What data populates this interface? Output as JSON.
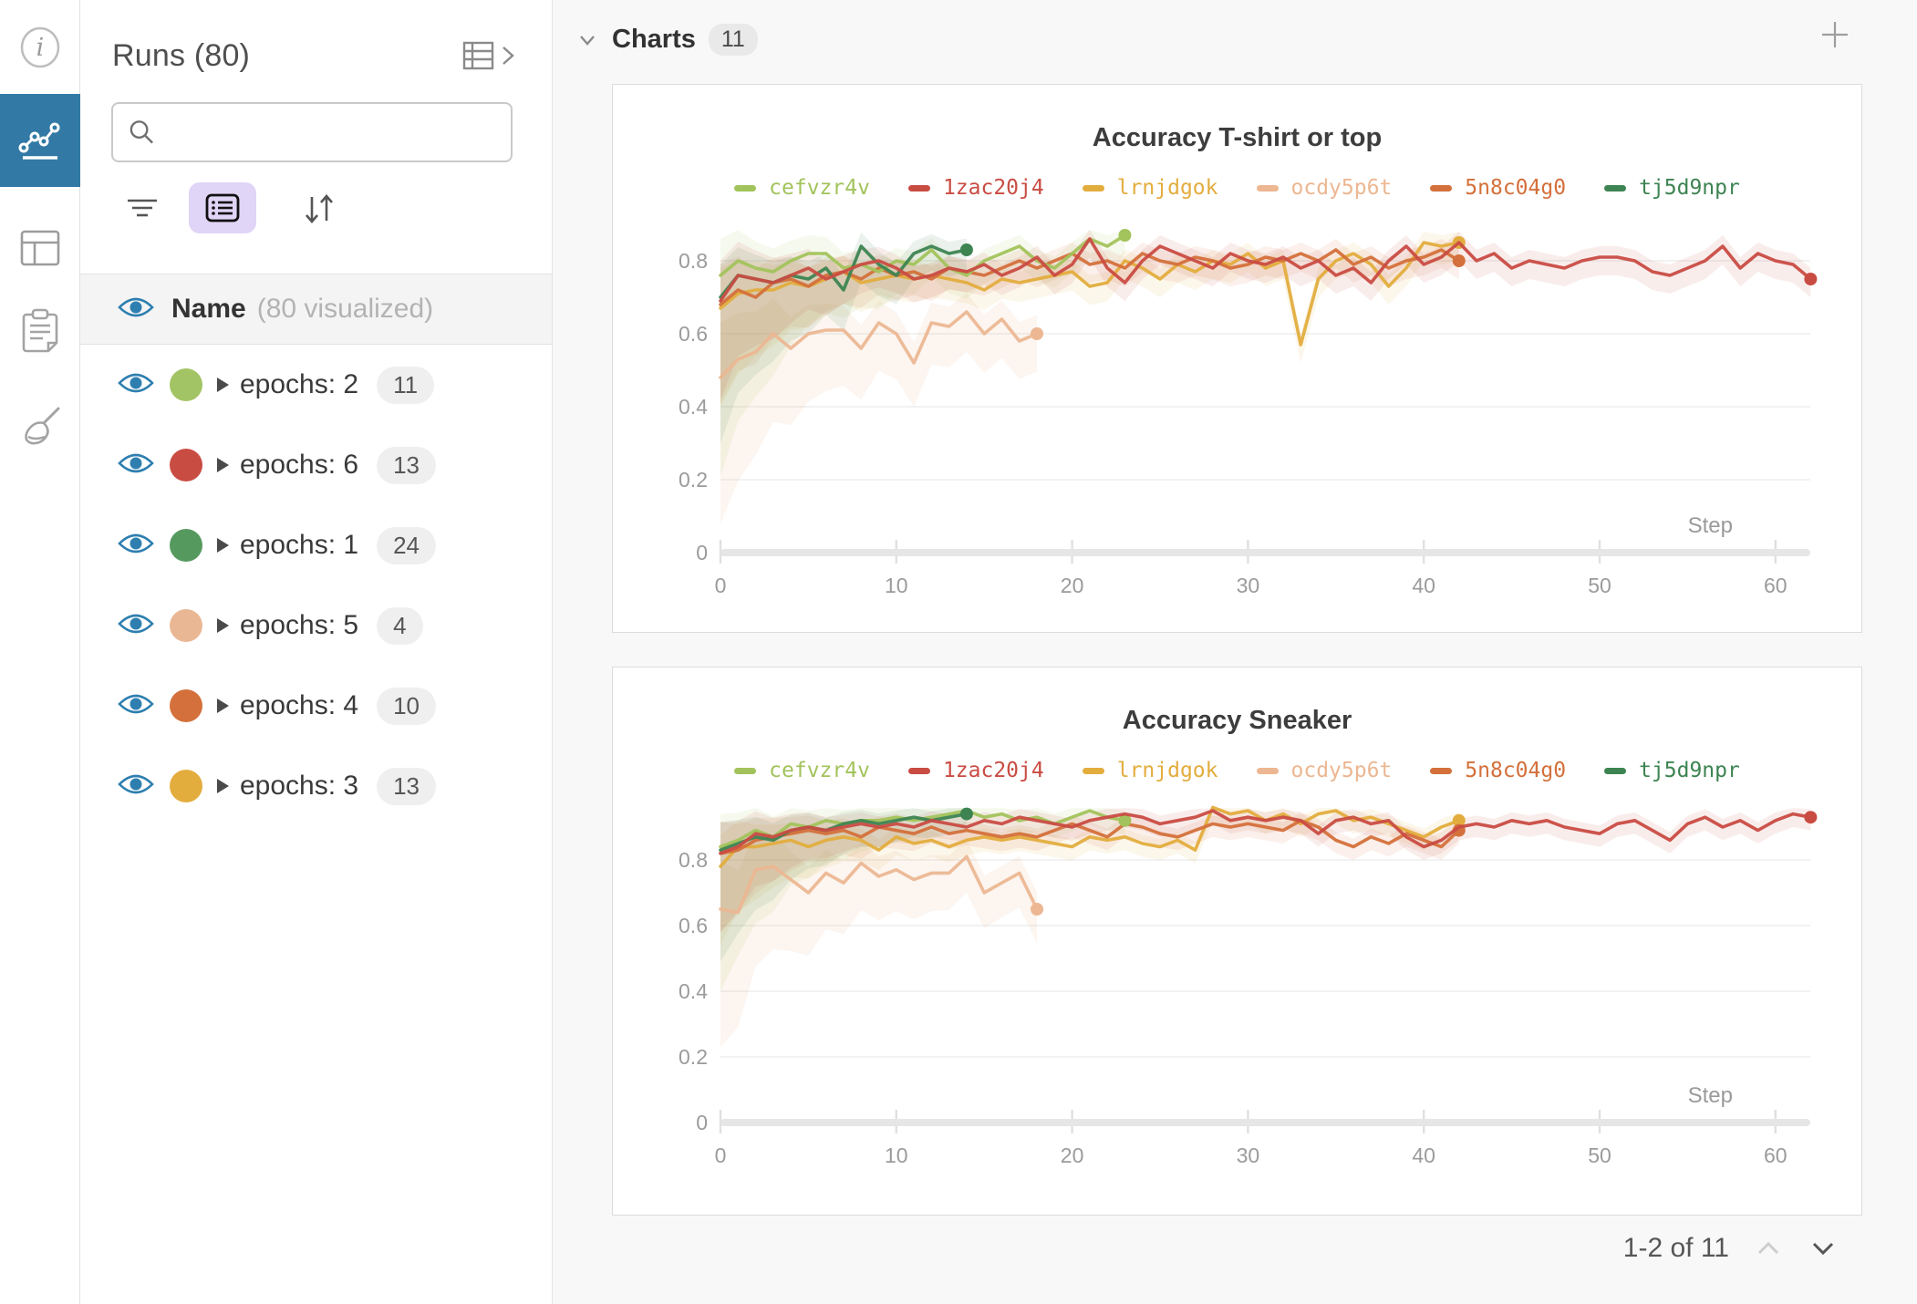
{
  "sidebar_rail": {
    "active_color": "#3279a5",
    "items": [
      "info",
      "line-chart",
      "table",
      "notes",
      "sweep"
    ]
  },
  "runs_panel": {
    "title": "Runs (80)",
    "search": {
      "value": "",
      "placeholder": ""
    },
    "header_row": {
      "label": "Name",
      "note": "(80 visualized)"
    },
    "groups": [
      {
        "label": "epochs: 2",
        "count": "11",
        "color": "#a2c465"
      },
      {
        "label": "epochs: 6",
        "count": "13",
        "color": "#c94c43"
      },
      {
        "label": "epochs: 1",
        "count": "24",
        "color": "#56995f"
      },
      {
        "label": "epochs: 5",
        "count": "4",
        "color": "#eab795"
      },
      {
        "label": "epochs: 4",
        "count": "10",
        "color": "#d4703b"
      },
      {
        "label": "epochs: 3",
        "count": "13",
        "color": "#e3ad3e"
      }
    ]
  },
  "main": {
    "section": {
      "title": "Charts",
      "badge": "11"
    },
    "pagination": {
      "label": "1-2 of 11"
    }
  },
  "chart_data": [
    {
      "type": "line",
      "title": "Accuracy T-shirt or top",
      "xlabel": "Step",
      "ylabel": "",
      "xlim": [
        0,
        66
      ],
      "ylim": [
        0,
        0.9
      ],
      "x_ticks": [
        0,
        10,
        20,
        30,
        40,
        50,
        60
      ],
      "y_ticks": [
        0,
        0.2,
        0.4,
        0.6,
        0.8
      ],
      "x_step": 1,
      "grid": true,
      "legend_position": "top",
      "series": [
        {
          "name": "cefvzr4v",
          "color": "#a2c35b",
          "band": [
            0.07,
            0.03,
            0.5,
            0.05
          ],
          "band_opacity": 0.1,
          "values": [
            0.76,
            0.8,
            0.78,
            0.77,
            0.8,
            0.82,
            0.82,
            0.78,
            0.79,
            0.77,
            0.8,
            0.79,
            0.83,
            0.78,
            0.76,
            0.8,
            0.82,
            0.84,
            0.8,
            0.78,
            0.82,
            0.86,
            0.84,
            0.87
          ]
        },
        {
          "name": "1zac20j4",
          "color": "#c94c43",
          "band": [
            0.08,
            0.03,
            0.22,
            0.05
          ],
          "band_opacity": 0.1,
          "values": [
            0.69,
            0.76,
            0.75,
            0.74,
            0.76,
            0.78,
            0.75,
            0.77,
            0.79,
            0.8,
            0.78,
            0.75,
            0.76,
            0.78,
            0.77,
            0.79,
            0.76,
            0.78,
            0.81,
            0.76,
            0.79,
            0.86,
            0.78,
            0.74,
            0.8,
            0.84,
            0.82,
            0.8,
            0.78,
            0.82,
            0.8,
            0.79,
            0.81,
            0.78,
            0.8,
            0.76,
            0.78,
            0.74,
            0.8,
            0.84,
            0.79,
            0.81,
            0.85,
            0.8,
            0.82,
            0.78,
            0.8,
            0.79,
            0.78,
            0.8,
            0.81,
            0.81,
            0.8,
            0.77,
            0.76,
            0.78,
            0.8,
            0.84,
            0.78,
            0.82,
            0.8,
            0.79,
            0.75
          ]
        },
        {
          "name": "lrnjdgok",
          "color": "#e3ad3e",
          "band": [
            0.08,
            0.03,
            0.22,
            0.05
          ],
          "band_opacity": 0.1,
          "values": [
            0.67,
            0.71,
            0.72,
            0.72,
            0.74,
            0.73,
            0.75,
            0.77,
            0.74,
            0.75,
            0.76,
            0.75,
            0.76,
            0.75,
            0.74,
            0.72,
            0.75,
            0.74,
            0.75,
            0.76,
            0.77,
            0.73,
            0.74,
            0.8,
            0.78,
            0.75,
            0.79,
            0.77,
            0.8,
            0.79,
            0.82,
            0.78,
            0.8,
            0.57,
            0.75,
            0.8,
            0.82,
            0.79,
            0.73,
            0.78,
            0.85,
            0.84,
            0.85
          ]
        },
        {
          "name": "ocdy5p6t",
          "color": "#ecb792",
          "band": [
            0.1,
            0.05,
            0.3,
            0.1
          ],
          "band_opacity": 0.14,
          "values": [
            0.48,
            0.53,
            0.55,
            0.6,
            0.56,
            0.6,
            0.61,
            0.61,
            0.56,
            0.63,
            0.6,
            0.52,
            0.63,
            0.62,
            0.66,
            0.6,
            0.64,
            0.58,
            0.6
          ]
        },
        {
          "name": "5n8c04g0",
          "color": "#d4703b",
          "band": [
            0.08,
            0.03,
            0.22,
            0.05
          ],
          "band_opacity": 0.1,
          "values": [
            0.68,
            0.72,
            0.7,
            0.74,
            0.75,
            0.73,
            0.76,
            0.77,
            0.75,
            0.78,
            0.76,
            0.77,
            0.75,
            0.78,
            0.77,
            0.76,
            0.78,
            0.8,
            0.78,
            0.8,
            0.82,
            0.79,
            0.8,
            0.78,
            0.82,
            0.8,
            0.79,
            0.81,
            0.8,
            0.78,
            0.79,
            0.81,
            0.8,
            0.82,
            0.8,
            0.83,
            0.79,
            0.81,
            0.78,
            0.8,
            0.81,
            0.83,
            0.8
          ]
        },
        {
          "name": "tj5d9npr",
          "color": "#3d8452",
          "band": [
            0.06,
            0.03,
            0.35,
            0.05
          ],
          "band_opacity": 0.1,
          "values": [
            0.7,
            0.76,
            0.75,
            0.74,
            0.76,
            0.75,
            0.78,
            0.72,
            0.84,
            0.79,
            0.76,
            0.82,
            0.84,
            0.82,
            0.83
          ]
        }
      ]
    },
    {
      "type": "line",
      "title": "Accuracy Sneaker",
      "xlabel": "Step",
      "ylabel": "",
      "xlim": [
        0,
        66
      ],
      "ylim": [
        0,
        0.96
      ],
      "x_ticks": [
        0,
        10,
        20,
        30,
        40,
        50,
        60
      ],
      "y_ticks": [
        0,
        0.2,
        0.4,
        0.6,
        0.8
      ],
      "x_step": 1,
      "grid": true,
      "legend_position": "top",
      "series": [
        {
          "name": "cefvzr4v",
          "color": "#a2c35b",
          "band": [
            0.07,
            0.03,
            0.4,
            0.04
          ],
          "band_opacity": 0.1,
          "values": [
            0.84,
            0.86,
            0.89,
            0.87,
            0.91,
            0.9,
            0.92,
            0.91,
            0.92,
            0.92,
            0.93,
            0.92,
            0.93,
            0.94,
            0.95,
            0.93,
            0.94,
            0.92,
            0.93,
            0.91,
            0.93,
            0.95,
            0.93,
            0.92
          ]
        },
        {
          "name": "1zac20j4",
          "color": "#c94c43",
          "band": [
            0.07,
            0.025,
            0.2,
            0.04
          ],
          "band_opacity": 0.1,
          "values": [
            0.82,
            0.84,
            0.88,
            0.87,
            0.89,
            0.9,
            0.89,
            0.9,
            0.91,
            0.9,
            0.91,
            0.9,
            0.92,
            0.91,
            0.9,
            0.92,
            0.91,
            0.93,
            0.92,
            0.91,
            0.9,
            0.92,
            0.93,
            0.94,
            0.93,
            0.91,
            0.92,
            0.93,
            0.95,
            0.92,
            0.93,
            0.92,
            0.93,
            0.92,
            0.88,
            0.92,
            0.93,
            0.91,
            0.92,
            0.87,
            0.84,
            0.86,
            0.9,
            0.91,
            0.9,
            0.92,
            0.91,
            0.92,
            0.9,
            0.89,
            0.88,
            0.91,
            0.92,
            0.89,
            0.86,
            0.91,
            0.93,
            0.9,
            0.92,
            0.89,
            0.92,
            0.94,
            0.93
          ]
        },
        {
          "name": "lrnjdgok",
          "color": "#e3ad3e",
          "band": [
            0.07,
            0.025,
            0.2,
            0.04
          ],
          "band_opacity": 0.1,
          "values": [
            0.78,
            0.84,
            0.84,
            0.85,
            0.86,
            0.84,
            0.86,
            0.87,
            0.86,
            0.83,
            0.87,
            0.85,
            0.86,
            0.84,
            0.86,
            0.87,
            0.86,
            0.87,
            0.86,
            0.85,
            0.84,
            0.87,
            0.86,
            0.87,
            0.85,
            0.84,
            0.86,
            0.83,
            0.96,
            0.94,
            0.95,
            0.92,
            0.94,
            0.91,
            0.94,
            0.95,
            0.92,
            0.93,
            0.91,
            0.89,
            0.87,
            0.9,
            0.92
          ]
        },
        {
          "name": "ocdy5p6t",
          "color": "#ecb792",
          "band": [
            0.1,
            0.05,
            0.32,
            0.1
          ],
          "band_opacity": 0.14,
          "values": [
            0.65,
            0.64,
            0.77,
            0.78,
            0.74,
            0.7,
            0.76,
            0.73,
            0.79,
            0.75,
            0.77,
            0.74,
            0.76,
            0.76,
            0.81,
            0.7,
            0.73,
            0.76,
            0.65
          ]
        },
        {
          "name": "5n8c04g0",
          "color": "#d4703b",
          "band": [
            0.07,
            0.025,
            0.2,
            0.04
          ],
          "band_opacity": 0.1,
          "values": [
            0.82,
            0.83,
            0.86,
            0.87,
            0.88,
            0.89,
            0.88,
            0.89,
            0.87,
            0.9,
            0.89,
            0.88,
            0.9,
            0.88,
            0.89,
            0.88,
            0.87,
            0.88,
            0.87,
            0.89,
            0.91,
            0.89,
            0.87,
            0.91,
            0.9,
            0.88,
            0.87,
            0.89,
            0.91,
            0.9,
            0.91,
            0.9,
            0.89,
            0.92,
            0.9,
            0.86,
            0.84,
            0.87,
            0.85,
            0.88,
            0.86,
            0.84,
            0.89
          ]
        },
        {
          "name": "tj5d9npr",
          "color": "#3d8452",
          "band": [
            0.06,
            0.025,
            0.3,
            0.04
          ],
          "band_opacity": 0.1,
          "values": [
            0.83,
            0.85,
            0.87,
            0.86,
            0.89,
            0.9,
            0.89,
            0.91,
            0.92,
            0.91,
            0.92,
            0.93,
            0.92,
            0.93,
            0.94
          ]
        }
      ]
    }
  ]
}
